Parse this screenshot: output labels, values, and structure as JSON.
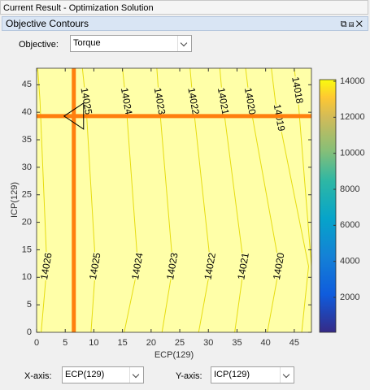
{
  "window": {
    "title": "Current Result - Optimization Solution"
  },
  "panel": {
    "title": "Objective Contours"
  },
  "objective": {
    "label": "Objective:",
    "value": "Torque"
  },
  "chart_data": {
    "type": "contour",
    "x_label": "ECP(129)",
    "y_label": "ICP(129)",
    "xlim": [
      0,
      48
    ],
    "ylim": [
      0,
      48
    ],
    "xticks": [
      0,
      5,
      10,
      15,
      20,
      25,
      30,
      35,
      40,
      45
    ],
    "yticks": [
      0,
      5,
      10,
      15,
      20,
      25,
      30,
      35,
      40,
      45
    ],
    "fill": "#ffffa8",
    "color": "#e6dc10",
    "contour_y": [
      48,
      42,
      12,
      0
    ],
    "contours": [
      {
        "level": 14026,
        "x": [
          0.2,
          0.6,
          1.8,
          0.8
        ],
        "label_y": [
          12
        ]
      },
      {
        "level": 14025,
        "x": [
          8.0,
          8.6,
          10.3,
          9.5
        ],
        "label_y": [
          42,
          12
        ]
      },
      {
        "level": 14024,
        "x": [
          15.0,
          15.6,
          17.7,
          15.3
        ],
        "label_y": [
          42,
          12
        ]
      },
      {
        "level": 14023,
        "x": [
          21.0,
          21.4,
          23.8,
          21.9
        ],
        "label_y": [
          42,
          12
        ]
      },
      {
        "level": 14022,
        "x": [
          26.8,
          27.3,
          30.4,
          28.3
        ],
        "label_y": [
          42,
          12
        ]
      },
      {
        "level": 14021,
        "x": [
          32.0,
          32.5,
          36.2,
          34.6
        ],
        "label_y": [
          42,
          12
        ]
      },
      {
        "level": 14020,
        "x": [
          36.5,
          37.2,
          42.4,
          40.3
        ],
        "label_y": [
          42,
          12
        ]
      },
      {
        "level": 14019,
        "x": [
          41.0,
          41.7,
          47.5,
          46.3
        ],
        "label_y": [
          39
        ]
      },
      {
        "level": 14018,
        "x": [
          45.0,
          45.7,
          48,
          48
        ],
        "label_y": [
          44
        ]
      }
    ],
    "crosshair": {
      "x": 6.5,
      "y": 39.3,
      "color": "#ff7f0e"
    },
    "colorbar": {
      "lim": [
        60,
        14090
      ],
      "ticks": [
        2000,
        4000,
        6000,
        8000,
        10000,
        12000,
        14000
      ]
    }
  },
  "x_axis_control": {
    "label": "X-axis:",
    "value": "ECP(129)"
  },
  "y_axis_control": {
    "label": "Y-axis:",
    "value": "ICP(129)"
  }
}
